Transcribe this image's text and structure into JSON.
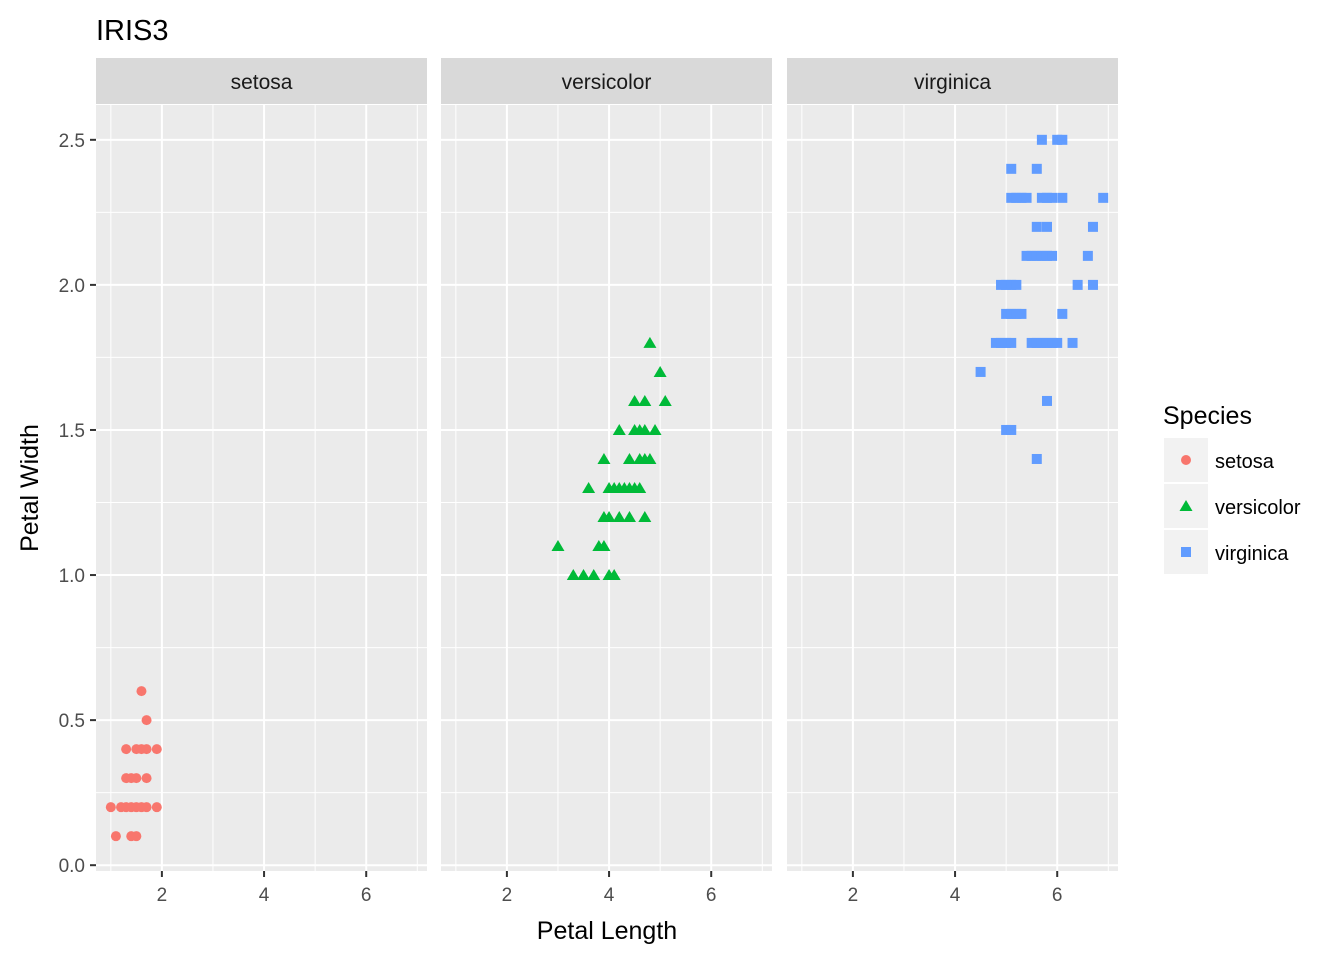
{
  "chart_data": {
    "type": "scatter",
    "title": "IRIS3",
    "xlabel": "Petal Length",
    "ylabel": "Petal Width",
    "facet_by": "Species",
    "facets": [
      "setosa",
      "versicolor",
      "virginica"
    ],
    "xlim": [
      0.71,
      7.19
    ],
    "ylim": [
      -0.02,
      2.62
    ],
    "x_ticks": [
      2,
      4,
      6
    ],
    "y_ticks": [
      0.0,
      0.5,
      1.0,
      1.5,
      2.0,
      2.5
    ],
    "y_tick_labels": [
      "0.0",
      "0.5",
      "1.0",
      "1.5",
      "2.0",
      "2.5"
    ],
    "grid": true,
    "legend": {
      "title": "Species",
      "position": "right",
      "entries": [
        {
          "label": "setosa",
          "shape": "circle",
          "color": "#F8766D"
        },
        {
          "label": "versicolor",
          "shape": "triangle",
          "color": "#00BA38"
        },
        {
          "label": "virginica",
          "shape": "square",
          "color": "#619CFF"
        }
      ]
    },
    "series": [
      {
        "name": "setosa",
        "shape": "circle",
        "color": "#F8766D",
        "points": [
          [
            1.6,
            0.6
          ],
          [
            1.7,
            0.5
          ],
          [
            1.3,
            0.4
          ],
          [
            1.5,
            0.4
          ],
          [
            1.6,
            0.4
          ],
          [
            1.7,
            0.4
          ],
          [
            1.9,
            0.4
          ],
          [
            1.3,
            0.3
          ],
          [
            1.4,
            0.3
          ],
          [
            1.5,
            0.3
          ],
          [
            1.7,
            0.3
          ],
          [
            1.0,
            0.2
          ],
          [
            1.2,
            0.2
          ],
          [
            1.3,
            0.2
          ],
          [
            1.4,
            0.2
          ],
          [
            1.5,
            0.2
          ],
          [
            1.6,
            0.2
          ],
          [
            1.7,
            0.2
          ],
          [
            1.9,
            0.2
          ],
          [
            1.1,
            0.1
          ],
          [
            1.4,
            0.1
          ],
          [
            1.5,
            0.1
          ]
        ]
      },
      {
        "name": "versicolor",
        "shape": "triangle",
        "color": "#00BA38",
        "points": [
          [
            4.8,
            1.8
          ],
          [
            5.0,
            1.7
          ],
          [
            4.5,
            1.6
          ],
          [
            4.7,
            1.6
          ],
          [
            5.1,
            1.6
          ],
          [
            4.2,
            1.5
          ],
          [
            4.5,
            1.5
          ],
          [
            4.6,
            1.5
          ],
          [
            4.7,
            1.5
          ],
          [
            4.9,
            1.5
          ],
          [
            3.9,
            1.4
          ],
          [
            4.4,
            1.4
          ],
          [
            4.6,
            1.4
          ],
          [
            4.7,
            1.4
          ],
          [
            4.8,
            1.4
          ],
          [
            3.6,
            1.3
          ],
          [
            4.0,
            1.3
          ],
          [
            4.1,
            1.3
          ],
          [
            4.2,
            1.3
          ],
          [
            4.3,
            1.3
          ],
          [
            4.4,
            1.3
          ],
          [
            4.5,
            1.3
          ],
          [
            4.6,
            1.3
          ],
          [
            3.9,
            1.2
          ],
          [
            4.0,
            1.2
          ],
          [
            4.2,
            1.2
          ],
          [
            4.4,
            1.2
          ],
          [
            4.7,
            1.2
          ],
          [
            3.0,
            1.1
          ],
          [
            3.8,
            1.1
          ],
          [
            3.9,
            1.1
          ],
          [
            3.3,
            1.0
          ],
          [
            3.5,
            1.0
          ],
          [
            3.7,
            1.0
          ],
          [
            4.0,
            1.0
          ],
          [
            4.1,
            1.0
          ]
        ]
      },
      {
        "name": "virginica",
        "shape": "square",
        "color": "#619CFF",
        "points": [
          [
            5.7,
            2.5
          ],
          [
            6.0,
            2.5
          ],
          [
            6.1,
            2.5
          ],
          [
            5.1,
            2.4
          ],
          [
            5.6,
            2.4
          ],
          [
            5.1,
            2.3
          ],
          [
            5.2,
            2.3
          ],
          [
            5.3,
            2.3
          ],
          [
            5.4,
            2.3
          ],
          [
            5.7,
            2.3
          ],
          [
            5.8,
            2.3
          ],
          [
            5.9,
            2.3
          ],
          [
            6.1,
            2.3
          ],
          [
            6.9,
            2.3
          ],
          [
            5.6,
            2.2
          ],
          [
            5.8,
            2.2
          ],
          [
            6.7,
            2.2
          ],
          [
            5.4,
            2.1
          ],
          [
            5.5,
            2.1
          ],
          [
            5.6,
            2.1
          ],
          [
            5.7,
            2.1
          ],
          [
            5.8,
            2.1
          ],
          [
            5.9,
            2.1
          ],
          [
            6.6,
            2.1
          ],
          [
            4.9,
            2.0
          ],
          [
            5.0,
            2.0
          ],
          [
            5.1,
            2.0
          ],
          [
            5.2,
            2.0
          ],
          [
            6.4,
            2.0
          ],
          [
            6.7,
            2.0
          ],
          [
            5.0,
            1.9
          ],
          [
            5.1,
            1.9
          ],
          [
            5.2,
            1.9
          ],
          [
            5.3,
            1.9
          ],
          [
            6.1,
            1.9
          ],
          [
            4.8,
            1.8
          ],
          [
            4.9,
            1.8
          ],
          [
            5.0,
            1.8
          ],
          [
            5.1,
            1.8
          ],
          [
            5.5,
            1.8
          ],
          [
            5.6,
            1.8
          ],
          [
            5.7,
            1.8
          ],
          [
            5.8,
            1.8
          ],
          [
            5.9,
            1.8
          ],
          [
            6.0,
            1.8
          ],
          [
            6.3,
            1.8
          ],
          [
            4.5,
            1.7
          ],
          [
            5.8,
            1.6
          ],
          [
            5.0,
            1.5
          ],
          [
            5.1,
            1.5
          ],
          [
            5.6,
            1.4
          ]
        ]
      }
    ]
  },
  "layout_colors": {
    "panel_bg": "#EBEBEB",
    "strip_bg": "#D9D9D9",
    "grid_major": "#FFFFFF",
    "legend_key_bg": "#F2F2F2"
  }
}
